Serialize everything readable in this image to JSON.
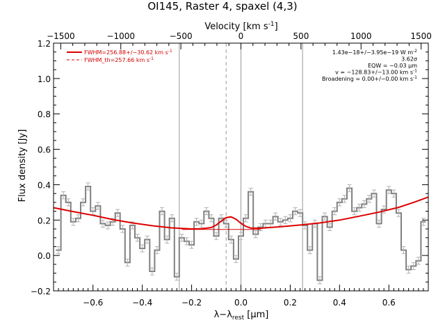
{
  "chart_data": {
    "type": "line",
    "title": "OI145, Raster 4, spaxel (4,3)",
    "xlabel": "λ−λ",
    "xlabel_sub": "rest",
    "xlabel_unit": " [μm]",
    "ylabel": "Flux density [Jy]",
    "top_axis_label": "Velocity [km s",
    "top_axis_label_sup": "-1",
    "top_axis_label_end": "]",
    "xlim": [
      -0.76,
      0.76
    ],
    "ylim": [
      -0.2,
      1.2
    ],
    "top_xlim": [
      -1560,
      1560
    ],
    "x_ticks": [
      -0.6,
      -0.4,
      -0.2,
      0.0,
      0.2,
      0.4,
      0.6
    ],
    "x_tick_labels": [
      "−0.6",
      "−0.4",
      "−0.2",
      "0.0",
      "0.2",
      "0.4",
      "0.6"
    ],
    "y_ticks": [
      -0.2,
      0.0,
      0.2,
      0.4,
      0.6,
      0.8,
      1.0,
      1.2
    ],
    "y_tick_labels": [
      "−0.2",
      "0.0",
      "0.2",
      "0.4",
      "0.6",
      "0.8",
      "1.0",
      "1.2"
    ],
    "top_ticks": [
      -1500,
      -1000,
      -500,
      0,
      500,
      1000,
      1500
    ],
    "top_tick_labels": [
      "−1500",
      "−1000",
      "−500",
      "0",
      "500",
      "1000",
      "1500"
    ],
    "vlines_solid": [
      -0.25,
      0.0,
      0.25
    ],
    "vline_dashed": -0.06,
    "series": [
      {
        "name": "spectrum",
        "style": "step",
        "color": "#808080",
        "x": [
          -0.74,
          -0.72,
          -0.7,
          -0.68,
          -0.66,
          -0.64,
          -0.62,
          -0.6,
          -0.58,
          -0.56,
          -0.54,
          -0.52,
          -0.5,
          -0.48,
          -0.46,
          -0.44,
          -0.42,
          -0.4,
          -0.38,
          -0.36,
          -0.34,
          -0.32,
          -0.3,
          -0.28,
          -0.26,
          -0.24,
          -0.22,
          -0.2,
          -0.18,
          -0.16,
          -0.14,
          -0.12,
          -0.1,
          -0.08,
          -0.06,
          -0.04,
          -0.02,
          0.0,
          0.02,
          0.04,
          0.06,
          0.08,
          0.1,
          0.12,
          0.14,
          0.16,
          0.18,
          0.2,
          0.22,
          0.24,
          0.26,
          0.28,
          0.3,
          0.32,
          0.34,
          0.36,
          0.38,
          0.4,
          0.42,
          0.44,
          0.46,
          0.48,
          0.5,
          0.52,
          0.54,
          0.56,
          0.58,
          0.6,
          0.62,
          0.64,
          0.66,
          0.68,
          0.7,
          0.72,
          0.74
        ],
        "y": [
          0.03,
          0.34,
          0.3,
          0.19,
          0.21,
          0.3,
          0.39,
          0.25,
          0.28,
          0.18,
          0.17,
          0.19,
          0.24,
          0.15,
          -0.04,
          0.17,
          0.1,
          0.04,
          0.09,
          -0.09,
          0.03,
          0.25,
          0.09,
          0.21,
          -0.12,
          0.1,
          0.08,
          0.06,
          0.19,
          0.18,
          0.25,
          0.21,
          0.11,
          0.21,
          0.18,
          0.09,
          -0.02,
          0.11,
          0.21,
          0.36,
          0.12,
          0.16,
          0.18,
          0.18,
          0.22,
          0.19,
          0.2,
          0.21,
          0.25,
          0.24,
          0.17,
          0.03,
          0.18,
          -0.14,
          0.22,
          0.16,
          0.25,
          0.3,
          0.32,
          0.38,
          0.25,
          0.27,
          0.29,
          0.32,
          0.35,
          0.18,
          0.26,
          0.37,
          0.35,
          0.24,
          0.03,
          -0.08,
          -0.06,
          -0.03,
          0.19
        ],
        "errors": [
          0.02,
          0.02,
          0.02,
          0.02,
          0.02,
          0.02,
          0.02,
          0.02,
          0.02,
          0.02,
          0.02,
          0.02,
          0.02,
          0.02,
          0.02,
          0.02,
          0.02,
          0.02,
          0.02,
          0.02,
          0.02,
          0.02,
          0.02,
          0.02,
          0.02,
          0.02,
          0.02,
          0.02,
          0.02,
          0.02,
          0.02,
          0.02,
          0.02,
          0.02,
          0.02,
          0.02,
          0.02,
          0.02,
          0.02,
          0.02,
          0.02,
          0.02,
          0.02,
          0.02,
          0.02,
          0.02,
          0.02,
          0.02,
          0.02,
          0.02,
          0.02,
          0.02,
          0.02,
          0.02,
          0.02,
          0.02,
          0.02,
          0.02,
          0.02,
          0.02,
          0.02,
          0.02,
          0.02,
          0.02,
          0.02,
          0.02,
          0.02,
          0.02,
          0.02,
          0.02,
          0.02,
          0.02,
          0.02,
          0.02,
          0.02
        ]
      },
      {
        "name": "FWHM=256.88+/−30.62 km s",
        "name_sup": "-1",
        "style": "solid",
        "color": "#dd0000",
        "x": [
          -0.76,
          -0.68,
          -0.6,
          -0.52,
          -0.44,
          -0.36,
          -0.28,
          -0.2,
          -0.16,
          -0.12,
          -0.1,
          -0.08,
          -0.06,
          -0.04,
          -0.02,
          0.0,
          0.02,
          0.04,
          0.08,
          0.16,
          0.24,
          0.32,
          0.4,
          0.48,
          0.56,
          0.64,
          0.7,
          0.76
        ],
        "y": [
          0.27,
          0.248,
          0.227,
          0.203,
          0.184,
          0.168,
          0.156,
          0.15,
          0.151,
          0.158,
          0.172,
          0.194,
          0.214,
          0.218,
          0.205,
          0.182,
          0.164,
          0.155,
          0.154,
          0.162,
          0.172,
          0.184,
          0.2,
          0.222,
          0.245,
          0.272,
          0.3,
          0.33
        ]
      },
      {
        "name": "FWHM_th=257.66 km s",
        "name_sup": "-1",
        "style": "dashed",
        "color": "#dd0000",
        "x": [],
        "y": []
      }
    ],
    "baseline": {
      "x": [
        -0.24,
        0.08
      ],
      "y": [
        0.147,
        0.147
      ],
      "color": "#dd0000"
    },
    "annotations": [
      {
        "text": "1.43e−18+/−3.95e−19 W m",
        "sup": "-2"
      },
      {
        "text": "3.62σ",
        "sup": ""
      },
      {
        "text": "EQW = −0.03 μm",
        "sup": ""
      },
      {
        "text": "v = −128.83+/−13.00 km s",
        "sup": "-1"
      },
      {
        "text": "Broadening = 0.00+/−0.00 km s",
        "sup": "-1"
      }
    ],
    "legend_position": "top-left",
    "grid": false
  }
}
